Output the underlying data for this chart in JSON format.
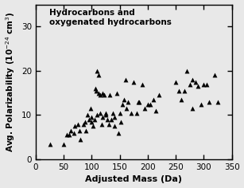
{
  "x": [
    25,
    50,
    55,
    60,
    63,
    68,
    70,
    75,
    78,
    80,
    85,
    88,
    90,
    92,
    95,
    98,
    100,
    100,
    102,
    105,
    107,
    108,
    110,
    110,
    112,
    112,
    115,
    115,
    118,
    120,
    120,
    122,
    125,
    125,
    128,
    130,
    132,
    135,
    138,
    140,
    140,
    145,
    148,
    150,
    152,
    155,
    158,
    160,
    162,
    165,
    170,
    175,
    180,
    183,
    185,
    190,
    195,
    200,
    205,
    210,
    215,
    220,
    250,
    255,
    260,
    265,
    270,
    275,
    280,
    280,
    285,
    290,
    295,
    300,
    305,
    310,
    320,
    325
  ],
  "y": [
    3.5,
    3.5,
    5.5,
    5.5,
    6.5,
    6.0,
    7.5,
    8.0,
    6.5,
    4.5,
    8.0,
    8.5,
    6.5,
    10.0,
    9.0,
    11.5,
    8.5,
    9.5,
    7.5,
    9.0,
    16.0,
    15.5,
    10.0,
    20.0,
    19.0,
    15.0,
    10.5,
    14.5,
    8.0,
    9.5,
    15.0,
    14.5,
    10.0,
    10.5,
    9.0,
    8.0,
    14.5,
    9.0,
    10.5,
    7.5,
    9.5,
    15.0,
    6.0,
    10.5,
    8.5,
    12.5,
    13.5,
    18.0,
    11.5,
    13.0,
    10.5,
    17.5,
    10.5,
    13.0,
    13.0,
    17.0,
    11.5,
    12.5,
    12.5,
    13.5,
    11.0,
    14.5,
    17.5,
    15.5,
    13.5,
    15.5,
    20.0,
    17.0,
    11.5,
    18.0,
    17.5,
    16.5,
    12.5,
    17.0,
    17.0,
    13.0,
    19.0,
    13.0
  ],
  "xlim": [
    0,
    350
  ],
  "ylim": [
    0,
    35
  ],
  "xticks": [
    0,
    50,
    100,
    150,
    200,
    250,
    300,
    350
  ],
  "yticks": [
    0,
    10,
    20,
    30
  ],
  "xlabel": "Adjusted Mass (Da)",
  "ylabel_line1": "Avg. Polarizability (10",
  "ylabel_line2": " cm",
  "ylabel_sup2": "3",
  "legend_text": "Hydrocarbons and\noxygenated hydrocarbons",
  "marker_color": "black",
  "marker": "^",
  "marker_size": 18,
  "bg_color": "#e8e8e8"
}
